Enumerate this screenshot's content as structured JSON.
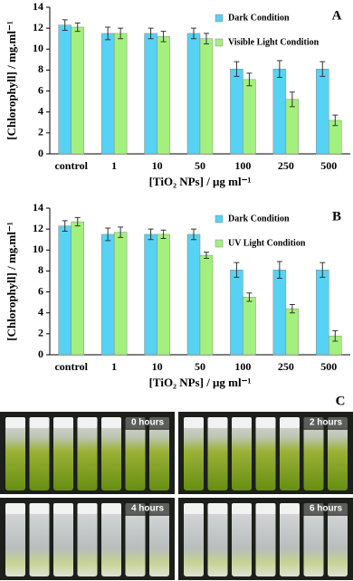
{
  "chart_data": [
    {
      "type": "bar",
      "panel": "A",
      "categories": [
        "control",
        "1",
        "10",
        "50",
        "100",
        "250",
        "500"
      ],
      "series": [
        {
          "name": "Dark Condition",
          "color": "#56d2f4",
          "values": [
            12.3,
            11.5,
            11.5,
            11.5,
            8.1,
            8.1,
            8.1
          ],
          "errors": [
            0.5,
            0.6,
            0.5,
            0.5,
            0.7,
            0.8,
            0.7
          ]
        },
        {
          "name": "Visible Light Condition",
          "color": "#a4f07e",
          "values": [
            12.1,
            11.5,
            11.2,
            11.0,
            7.1,
            5.2,
            3.2
          ],
          "errors": [
            0.4,
            0.5,
            0.5,
            0.5,
            0.6,
            0.7,
            0.5
          ]
        }
      ],
      "ylim": [
        0,
        14
      ],
      "yticks": [
        0,
        2,
        4,
        6,
        8,
        10,
        12,
        14
      ],
      "x_label": "[TiO₂ NPs] / μg ml⁻¹",
      "y_label": "[Chlorophyll]  / mg.ml⁻¹",
      "legend": "upper right"
    },
    {
      "type": "bar",
      "panel": "B",
      "categories": [
        "control",
        "1",
        "10",
        "50",
        "100",
        "250",
        "500"
      ],
      "series": [
        {
          "name": "Dark Condition",
          "color": "#56d2f4",
          "values": [
            12.3,
            11.5,
            11.5,
            11.5,
            8.1,
            8.1,
            8.1
          ],
          "errors": [
            0.5,
            0.6,
            0.5,
            0.5,
            0.7,
            0.8,
            0.7
          ]
        },
        {
          "name": "UV Light Condition",
          "color": "#a4f07e",
          "values": [
            12.7,
            11.7,
            11.5,
            9.5,
            5.5,
            4.4,
            1.8
          ],
          "errors": [
            0.4,
            0.5,
            0.4,
            0.3,
            0.4,
            0.4,
            0.5
          ]
        }
      ],
      "ylim": [
        0,
        14
      ],
      "yticks": [
        0,
        2,
        4,
        6,
        8,
        10,
        12,
        14
      ],
      "x_label": "[TiO₂ NPs] / μg ml⁻¹",
      "y_label": "[Chlorophyll] / mg.ml⁻¹",
      "legend": "upper right"
    }
  ],
  "photos": {
    "label": "C",
    "panels": [
      "0 hours",
      "2 hours",
      "4 hours",
      "6 hours"
    ]
  }
}
